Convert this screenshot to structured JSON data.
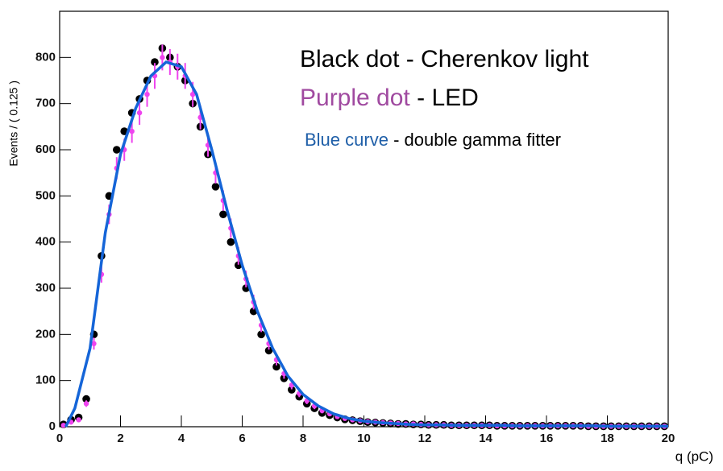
{
  "chart_data": {
    "type": "scatter",
    "xlabel": "q (pC)",
    "ylabel": "Events / ( 0.125 )",
    "xlim": [
      0,
      20
    ],
    "ylim": [
      0,
      900
    ],
    "xticks": [
      0,
      2,
      4,
      6,
      8,
      10,
      12,
      14,
      16,
      18,
      20
    ],
    "yticks": [
      0,
      100,
      200,
      300,
      400,
      500,
      600,
      700,
      800
    ],
    "annotations": [
      {
        "label": "Black dot - Cherenkov light",
        "color": "#000000"
      },
      {
        "label": "Purple dot",
        "color": "#a04aa0",
        "rest": "- LED"
      },
      {
        "label": "Blue curve",
        "color": "#1f5fa8",
        "rest": "- double gamma fitter"
      }
    ],
    "series": [
      {
        "color": "#000000",
        "x": [
          0.125,
          0.375,
          0.625,
          0.875,
          1.125,
          1.375,
          1.625,
          1.875,
          2.125,
          2.375,
          2.625,
          2.875,
          3.125,
          3.375,
          3.625,
          3.875,
          4.125,
          4.375,
          4.625,
          4.875,
          5.125,
          5.375,
          5.625,
          5.875,
          6.125,
          6.375,
          6.625,
          6.875,
          7.125,
          7.375,
          7.625,
          7.875,
          8.125,
          8.375,
          8.625,
          8.875,
          9.125,
          9.375,
          9.625,
          9.875,
          10.125,
          10.375,
          10.625,
          10.875,
          11.125,
          11.375,
          11.625,
          11.875,
          12.125,
          12.375,
          12.625,
          12.875,
          13.125,
          13.375,
          13.625,
          13.875,
          14.125,
          14.375,
          14.625,
          14.875,
          15.125,
          15.375,
          15.625,
          15.875,
          16.125,
          16.375,
          16.625,
          16.875,
          17.125,
          17.375,
          17.625,
          17.875,
          18.125,
          18.375,
          18.625,
          18.875,
          19.125,
          19.375,
          19.625,
          19.875
        ],
        "values": [
          5,
          15,
          20,
          60,
          200,
          370,
          500,
          600,
          640,
          680,
          710,
          750,
          790,
          820,
          800,
          780,
          750,
          700,
          650,
          590,
          520,
          460,
          400,
          350,
          300,
          250,
          200,
          165,
          130,
          105,
          80,
          65,
          50,
          40,
          30,
          25,
          20,
          16,
          14,
          12,
          10,
          9,
          8,
          7,
          6,
          6,
          5,
          5,
          4,
          4,
          4,
          3,
          3,
          3,
          3,
          3,
          3,
          2,
          2,
          2,
          2,
          2,
          2,
          2,
          2,
          2,
          2,
          2,
          2,
          1,
          1,
          1,
          1,
          1,
          1,
          1,
          1,
          1,
          1,
          1
        ]
      },
      {
        "color": "#ee44ee",
        "x": [
          0.125,
          0.375,
          0.625,
          0.875,
          1.125,
          1.375,
          1.625,
          1.875,
          2.125,
          2.375,
          2.625,
          2.875,
          3.125,
          3.375,
          3.625,
          3.875,
          4.125,
          4.375,
          4.625,
          4.875,
          5.125,
          5.375,
          5.625,
          5.875,
          6.125,
          6.375,
          6.625,
          6.875,
          7.125,
          7.375,
          7.625,
          7.875,
          8.125,
          8.375,
          8.625,
          8.875,
          9.125,
          9.375,
          9.625,
          9.875,
          10.125,
          10.375,
          10.625,
          10.875,
          11.125,
          11.375,
          11.625,
          11.875,
          12.125,
          12.375,
          12.625,
          12.875,
          13.125,
          13.375,
          13.625,
          13.875,
          14.125,
          14.375,
          14.625,
          14.875,
          15.125,
          15.375,
          15.625,
          15.875,
          16.125,
          16.375,
          16.625,
          16.875,
          17.125,
          17.375,
          17.625,
          17.875,
          18.125,
          18.375,
          18.625,
          18.875,
          19.125,
          19.375,
          19.625,
          19.875
        ],
        "values": [
          3,
          10,
          15,
          50,
          180,
          330,
          460,
          560,
          600,
          640,
          680,
          720,
          760,
          800,
          790,
          780,
          760,
          720,
          670,
          610,
          550,
          490,
          430,
          370,
          320,
          270,
          220,
          180,
          145,
          115,
          90,
          72,
          56,
          45,
          35,
          28,
          22,
          18,
          15,
          13,
          11,
          10,
          9,
          8,
          7,
          6,
          6,
          5,
          4,
          4,
          4,
          3,
          3,
          3,
          3,
          3,
          3,
          2,
          2,
          2,
          2,
          2,
          2,
          2,
          2,
          2,
          2,
          2,
          2,
          1,
          1,
          1,
          1,
          1,
          1,
          1,
          1,
          1,
          1,
          1
        ],
        "errors": [
          2,
          3,
          4,
          7,
          13,
          18,
          21,
          24,
          24,
          25,
          26,
          27,
          28,
          28,
          28,
          28,
          28,
          27,
          26,
          25,
          23,
          22,
          21,
          19,
          18,
          16,
          15,
          13,
          12,
          11,
          9,
          8,
          7,
          7,
          6,
          5,
          5,
          4,
          4,
          4,
          3,
          3,
          3,
          3,
          3,
          2,
          2,
          2,
          2,
          2,
          2,
          2,
          2,
          2,
          2,
          2,
          2,
          1,
          1,
          1,
          1,
          1,
          1,
          1,
          1,
          1,
          1,
          1,
          1,
          1,
          1,
          1,
          1,
          1,
          1,
          1,
          1,
          1,
          1,
          1
        ]
      },
      {
        "color": "#1565d8",
        "line": true,
        "x": [
          0.2,
          0.5,
          1,
          1.5,
          2,
          2.5,
          3,
          3.5,
          4,
          4.5,
          5,
          5.5,
          6,
          6.5,
          7,
          7.5,
          8,
          8.5,
          9,
          9.5,
          10,
          10.5,
          11,
          11.5,
          12,
          12.5,
          13,
          13.5,
          14,
          14.5,
          15,
          15.5,
          16,
          16.5,
          17,
          17.5,
          18,
          18.5,
          19,
          19.5,
          20
        ],
        "values": [
          0,
          40,
          170,
          420,
          590,
          690,
          760,
          790,
          780,
          720,
          600,
          470,
          350,
          250,
          170,
          110,
          70,
          45,
          28,
          18,
          12,
          9,
          7,
          5,
          4,
          4,
          3,
          3,
          3,
          3,
          2,
          2,
          2,
          2,
          2,
          2,
          1,
          1,
          1,
          1,
          1
        ]
      }
    ]
  }
}
